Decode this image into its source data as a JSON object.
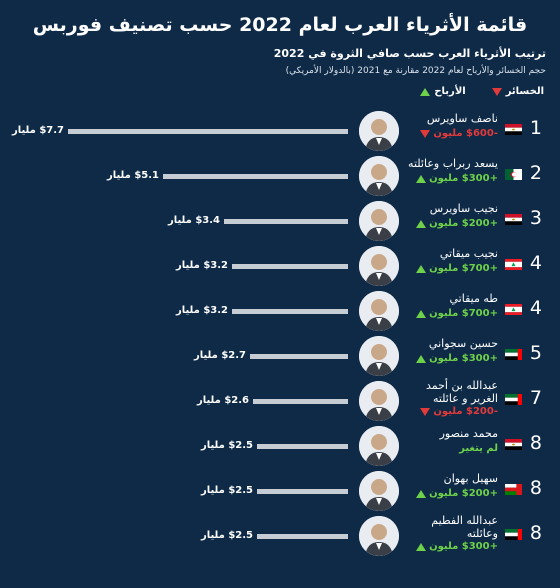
{
  "header": {
    "title": "قائمة الأثرياء العرب لعام 2022 حسب تصنيف فوربس",
    "subtitle": "ترتيب الأثرياء العرب حسب صافي الثروة في 2022",
    "subtitle2": "حجم الخسائر والأرباح لعام 2022 مقارنة مع 2021 (بالدولار الأمريكي)",
    "legend_losses": "الخسائر",
    "legend_gains": "الأرباح"
  },
  "colors": {
    "background": "#0e2a47",
    "bar": "#c5ccd4",
    "gain": "#6fd14a",
    "loss": "#e23a3a"
  },
  "chart_data": {
    "type": "bar",
    "orientation": "horizontal",
    "title": "قائمة الأثرياء العرب لعام 2022 حسب تصنيف فوربس",
    "xlim": [
      0,
      7.7
    ],
    "categories": [
      "ناصف ساويرس",
      "يسعد ربراب وعائلته",
      "نجيب ساويرس",
      "نجيب ميقاتي",
      "طه ميقاتي",
      "حسين سجواني",
      "عبدالله بن أحمد الغرير و عائلته",
      "محمد منصور",
      "سهيل بهوان",
      "عبدالله الفطيم وعائلته"
    ],
    "values": [
      7.7,
      5.1,
      3.4,
      3.2,
      3.2,
      2.7,
      2.6,
      2.5,
      2.5,
      2.5
    ],
    "rows": [
      {
        "rank": "1",
        "name": "ناصف ساويرس",
        "value_label": "$7.7 مليار",
        "change": "-$600 مليون",
        "direction": "down",
        "flag": "egypt"
      },
      {
        "rank": "2",
        "name": "يسعد ربراب وعائلته",
        "value_label": "$5.1 مليار",
        "change": "+$300 مليون",
        "direction": "up",
        "flag": "algeria"
      },
      {
        "rank": "3",
        "name": "نجيب ساويرس",
        "value_label": "$3.4 مليار",
        "change": "+$200 مليون",
        "direction": "up",
        "flag": "egypt"
      },
      {
        "rank": "4",
        "name": "نجيب ميقاتي",
        "value_label": "$3.2 مليار",
        "change": "+$700 مليون",
        "direction": "up",
        "flag": "lebanon"
      },
      {
        "rank": "4",
        "name": "طه ميقاتي",
        "value_label": "$3.2 مليار",
        "change": "+$700 مليون",
        "direction": "up",
        "flag": "lebanon"
      },
      {
        "rank": "5",
        "name": "حسين سجواني",
        "value_label": "$2.7 مليار",
        "change": "+$300 مليون",
        "direction": "up",
        "flag": "uae"
      },
      {
        "rank": "7",
        "name": "عبدالله بن أحمد الغرير و عائلته",
        "value_label": "$2.6 مليار",
        "change": "-$200 مليون",
        "direction": "down",
        "flag": "uae"
      },
      {
        "rank": "8",
        "name": "محمد منصور",
        "value_label": "$2.5 مليار",
        "change": "لم يتغير",
        "direction": "none",
        "flag": "egypt"
      },
      {
        "rank": "8",
        "name": "سهيل بهوان",
        "value_label": "$2.5 مليار",
        "change": "+$200 مليون",
        "direction": "up",
        "flag": "oman"
      },
      {
        "rank": "8",
        "name": "عبدالله الفطيم وعائلته",
        "value_label": "$2.5 مليار",
        "change": "+$300 مليون",
        "direction": "up",
        "flag": "uae"
      }
    ]
  }
}
